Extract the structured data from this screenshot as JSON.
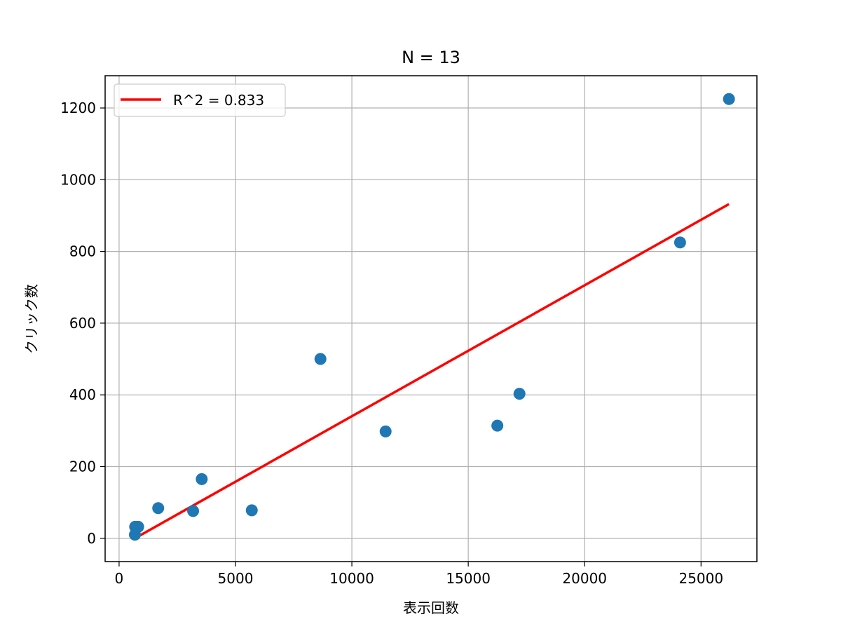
{
  "chart_data": {
    "type": "scatter",
    "title": "N = 13",
    "xlabel": "表示回数",
    "ylabel": "クリック数",
    "xlim": [
      -600,
      27400
    ],
    "ylim": [
      -65,
      1290
    ],
    "xticks": [
      0,
      5000,
      10000,
      15000,
      20000,
      25000
    ],
    "yticks": [
      0,
      200,
      400,
      600,
      800,
      1000,
      1200
    ],
    "grid": true,
    "legend": {
      "placement": "top-left",
      "label": "R^2 = 0.833"
    },
    "series": [
      {
        "kind": "points",
        "color": "#1f77b4",
        "points": [
          [
            680,
            10
          ],
          [
            690,
            32
          ],
          [
            820,
            32
          ],
          [
            1680,
            84
          ],
          [
            3180,
            76
          ],
          [
            3550,
            165
          ],
          [
            5700,
            78
          ],
          [
            8650,
            500
          ],
          [
            11450,
            298
          ],
          [
            16250,
            314
          ],
          [
            17200,
            403
          ],
          [
            24100,
            825
          ],
          [
            26200,
            1225
          ]
        ]
      },
      {
        "kind": "line",
        "name": "R^2 = 0.833",
        "color": "#ff0000",
        "points": [
          [
            680,
            0
          ],
          [
            26200,
            932
          ]
        ]
      }
    ]
  }
}
